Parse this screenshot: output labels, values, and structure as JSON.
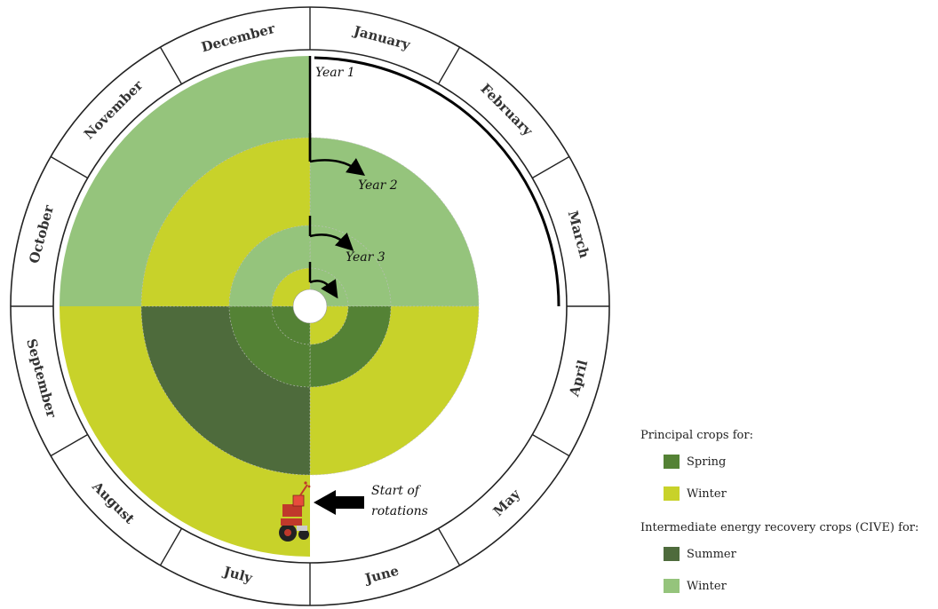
{
  "months": [
    "January",
    "February",
    "March",
    "April",
    "May",
    "June",
    "July",
    "August",
    "September",
    "October",
    "November",
    "December"
  ],
  "colors": {
    "spring": "#548235",
    "winter": "#c8d22a",
    "cive_summer": "#4e6b3c",
    "cive_winter": "#95c47c"
  },
  "rings": [
    {
      "label": "Year 1",
      "quadrants": {
        "q1": "white",
        "q2": "white",
        "q3": "winter",
        "q4": "cive_winter"
      }
    },
    {
      "label": "Year 2",
      "quadrants": {
        "q1": "cive_winter",
        "q2": "winter",
        "q3": "cive_summer",
        "q4": "winter"
      }
    },
    {
      "label": "Year 3",
      "quadrants": {
        "q1": "cive_winter",
        "q2": "spring",
        "q3": "spring",
        "q4": "cive_winter"
      }
    },
    {
      "label": "",
      "quadrants": {
        "q1": "cive_winter",
        "q2": "winter",
        "q3": "spring",
        "q4": "winter"
      }
    }
  ],
  "start": {
    "line1": "Start of",
    "line2": "rotations",
    "icon": "tractor-icon"
  },
  "legend": {
    "principal_heading": "Principal crops for:",
    "principal_items": [
      {
        "label": "Spring",
        "color_key": "spring"
      },
      {
        "label": "Winter",
        "color_key": "winter"
      }
    ],
    "cive_heading": "Intermediate energy recovery crops (CIVE) for:",
    "cive_items": [
      {
        "label": "Summer",
        "color_key": "cive_summer"
      },
      {
        "label": "Winter",
        "color_key": "cive_winter"
      }
    ]
  }
}
